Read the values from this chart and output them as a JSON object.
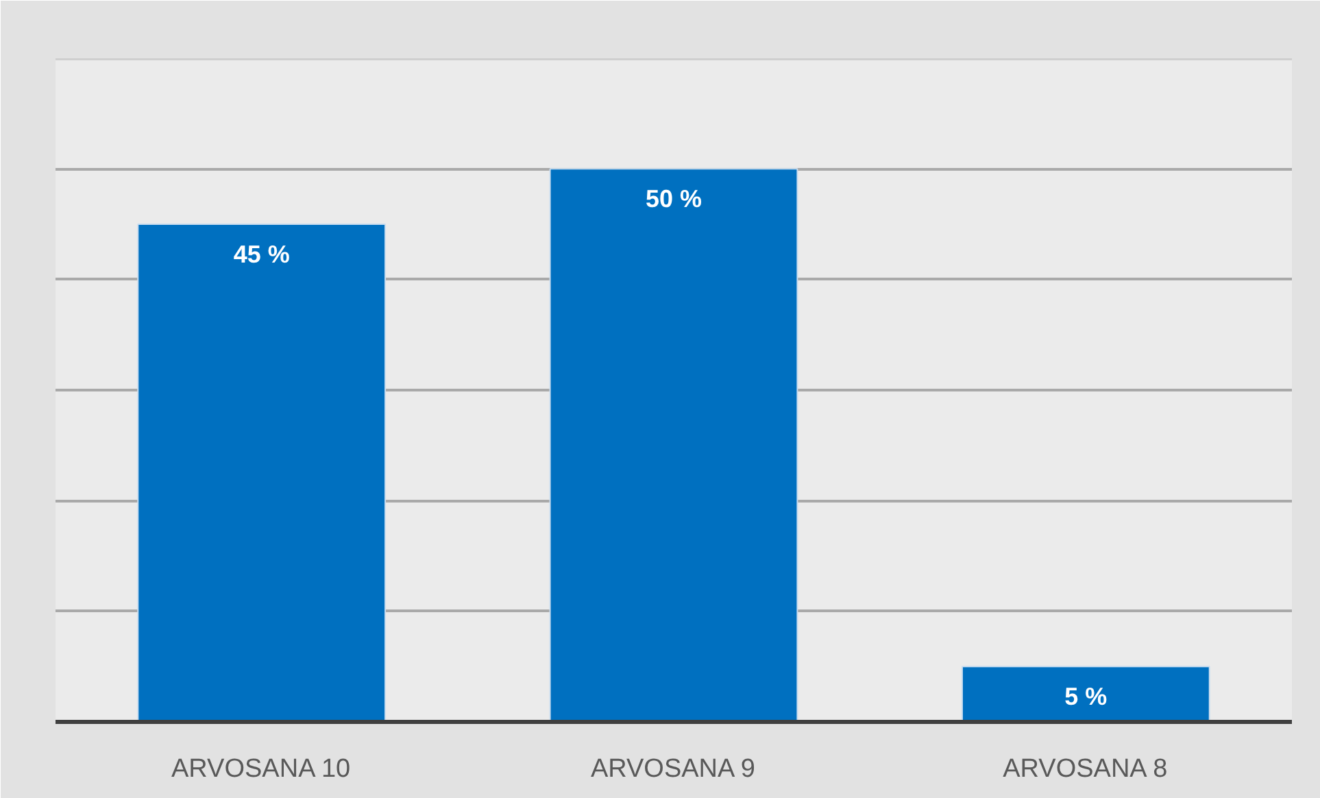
{
  "chart_data": {
    "type": "bar",
    "categories": [
      "ARVOSANA 10",
      "ARVOSANA 9",
      "ARVOSANA 8"
    ],
    "values": [
      45,
      50,
      5
    ],
    "color": "#0070c0",
    "value_labels": [
      "45 %",
      "50 %",
      "5 %"
    ],
    "ylim": [
      0,
      60
    ],
    "yticks": [
      {
        "value": 0,
        "label": null
      },
      {
        "value": 10,
        "label": null
      },
      {
        "value": 20,
        "label": null
      },
      {
        "value": 30,
        "label": null
      },
      {
        "value": 40,
        "label": null
      },
      {
        "value": 50,
        "label": null
      },
      {
        "value": 60,
        "label": null
      }
    ],
    "grid": "y",
    "tick_labels": "x"
  }
}
